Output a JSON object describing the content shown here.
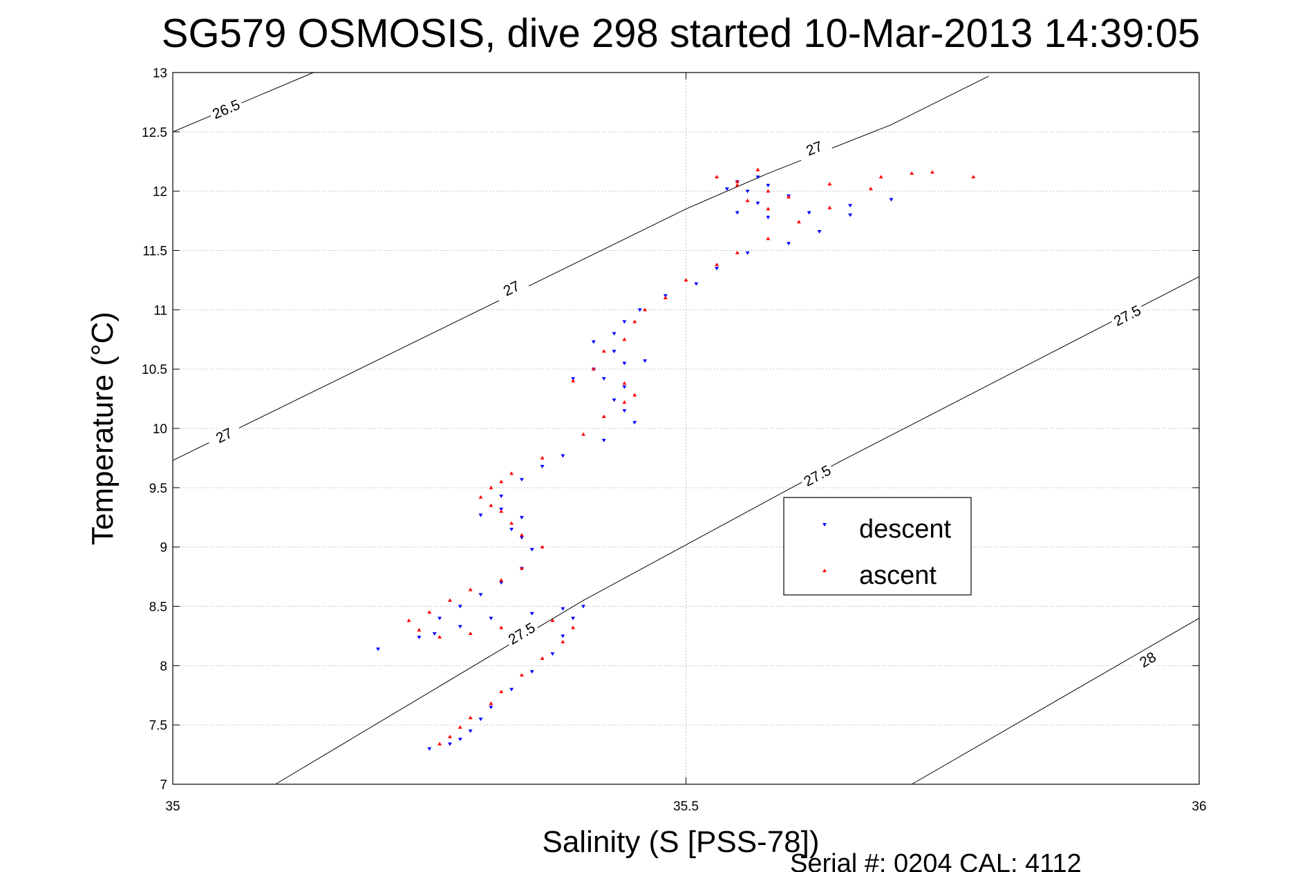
{
  "chart_data": {
    "type": "scatter",
    "title": "SG579 OSMOSIS, dive 298 started 10-Mar-2013 14:39:05",
    "xlabel": "Salinity (S [PSS-78])",
    "ylabel": "Temperature (°C)",
    "xlim": [
      35,
      36
    ],
    "ylim": [
      7,
      13
    ],
    "xticks": [
      "35",
      "35.5",
      "36"
    ],
    "yticks": [
      "7",
      "7.5",
      "8",
      "8.5",
      "9",
      "9.5",
      "10",
      "10.5",
      "11",
      "11.5",
      "12",
      "12.5",
      "13"
    ],
    "grid": true,
    "legend": {
      "position": "right",
      "entries": [
        "descent",
        "ascent"
      ]
    },
    "footer": "Serial #: 0204  CAL: 4112",
    "colors": {
      "descent": "#0000ff",
      "ascent": "#ff0000",
      "contour": "#000000",
      "grid": "#b0b0b0"
    },
    "contours": [
      {
        "label": "26.5",
        "points": [
          [
            35.0,
            12.5
          ],
          [
            35.137,
            13.0
          ]
        ],
        "label_at": [
          [
            35.052,
            12.69
          ]
        ]
      },
      {
        "label": "27",
        "points": [
          [
            35.0,
            9.73
          ],
          [
            35.5,
            11.85
          ],
          [
            35.58,
            12.15
          ],
          [
            35.7,
            12.56
          ],
          [
            35.795,
            12.97
          ]
        ],
        "label_at": [
          [
            35.05,
            9.94
          ],
          [
            35.33,
            11.18
          ],
          [
            35.625,
            12.36
          ]
        ]
      },
      {
        "label": "27.5",
        "points": [
          [
            35.1,
            7.0
          ],
          [
            35.4,
            8.55
          ],
          [
            35.65,
            9.72
          ],
          [
            36.0,
            11.28
          ]
        ],
        "label_at": [
          [
            35.34,
            8.27
          ],
          [
            35.628,
            9.6
          ],
          [
            35.93,
            10.95
          ]
        ]
      },
      {
        "label": "28",
        "points": [
          [
            35.72,
            7.0
          ],
          [
            36.0,
            8.4
          ]
        ],
        "label_at": [
          [
            35.95,
            8.05
          ]
        ]
      }
    ],
    "series": [
      {
        "name": "descent",
        "marker": "triangle-down",
        "points": [
          [
            35.25,
            7.3
          ],
          [
            35.27,
            7.34
          ],
          [
            35.28,
            7.38
          ],
          [
            35.29,
            7.45
          ],
          [
            35.3,
            7.55
          ],
          [
            35.31,
            7.65
          ],
          [
            35.33,
            7.8
          ],
          [
            35.35,
            7.95
          ],
          [
            35.37,
            8.1
          ],
          [
            35.38,
            8.25
          ],
          [
            35.39,
            8.4
          ],
          [
            35.4,
            8.5
          ],
          [
            35.38,
            8.48
          ],
          [
            35.35,
            8.44
          ],
          [
            35.31,
            8.4
          ],
          [
            35.28,
            8.33
          ],
          [
            35.24,
            8.24
          ],
          [
            35.2,
            8.14
          ],
          [
            35.255,
            8.27
          ],
          [
            35.26,
            8.4
          ],
          [
            35.28,
            8.5
          ],
          [
            35.3,
            8.6
          ],
          [
            35.32,
            8.7
          ],
          [
            35.34,
            8.82
          ],
          [
            35.35,
            8.98
          ],
          [
            35.34,
            9.08
          ],
          [
            35.33,
            9.15
          ],
          [
            35.34,
            9.25
          ],
          [
            35.32,
            9.32
          ],
          [
            35.3,
            9.27
          ],
          [
            35.32,
            9.43
          ],
          [
            35.34,
            9.57
          ],
          [
            35.36,
            9.68
          ],
          [
            35.38,
            9.77
          ],
          [
            35.42,
            9.9
          ],
          [
            35.45,
            10.05
          ],
          [
            35.44,
            10.15
          ],
          [
            35.43,
            10.24
          ],
          [
            35.44,
            10.35
          ],
          [
            35.42,
            10.42
          ],
          [
            35.39,
            10.42
          ],
          [
            35.41,
            10.5
          ],
          [
            35.44,
            10.55
          ],
          [
            35.46,
            10.57
          ],
          [
            35.43,
            10.65
          ],
          [
            35.41,
            10.73
          ],
          [
            35.43,
            10.8
          ],
          [
            35.44,
            10.9
          ],
          [
            35.455,
            11.0
          ],
          [
            35.48,
            11.12
          ],
          [
            35.51,
            11.22
          ],
          [
            35.53,
            11.35
          ],
          [
            35.56,
            11.48
          ],
          [
            35.6,
            11.56
          ],
          [
            35.63,
            11.66
          ],
          [
            35.66,
            11.8
          ],
          [
            35.7,
            11.93
          ],
          [
            35.66,
            11.88
          ],
          [
            35.62,
            11.82
          ],
          [
            35.58,
            11.78
          ],
          [
            35.55,
            11.82
          ],
          [
            35.57,
            11.9
          ],
          [
            35.6,
            11.96
          ],
          [
            35.56,
            12.0
          ],
          [
            35.54,
            12.02
          ],
          [
            35.58,
            12.05
          ],
          [
            35.55,
            12.08
          ],
          [
            35.57,
            12.12
          ]
        ]
      },
      {
        "name": "ascent",
        "marker": "triangle-up",
        "points": [
          [
            35.26,
            7.34
          ],
          [
            35.27,
            7.4
          ],
          [
            35.28,
            7.48
          ],
          [
            35.29,
            7.56
          ],
          [
            35.31,
            7.68
          ],
          [
            35.32,
            7.78
          ],
          [
            35.34,
            7.92
          ],
          [
            35.36,
            8.06
          ],
          [
            35.38,
            8.2
          ],
          [
            35.39,
            8.32
          ],
          [
            35.37,
            8.38
          ],
          [
            35.32,
            8.32
          ],
          [
            35.29,
            8.27
          ],
          [
            35.26,
            8.24
          ],
          [
            35.24,
            8.3
          ],
          [
            35.23,
            8.38
          ],
          [
            35.25,
            8.45
          ],
          [
            35.27,
            8.55
          ],
          [
            35.29,
            8.64
          ],
          [
            35.32,
            8.72
          ],
          [
            35.34,
            8.82
          ],
          [
            35.36,
            9.0
          ],
          [
            35.34,
            9.1
          ],
          [
            35.33,
            9.2
          ],
          [
            35.32,
            9.3
          ],
          [
            35.31,
            9.35
          ],
          [
            35.3,
            9.42
          ],
          [
            35.31,
            9.5
          ],
          [
            35.32,
            9.55
          ],
          [
            35.33,
            9.62
          ],
          [
            35.36,
            9.75
          ],
          [
            35.4,
            9.95
          ],
          [
            35.42,
            10.1
          ],
          [
            35.44,
            10.22
          ],
          [
            35.45,
            10.28
          ],
          [
            35.44,
            10.38
          ],
          [
            35.41,
            10.5
          ],
          [
            35.39,
            10.4
          ],
          [
            35.42,
            10.65
          ],
          [
            35.44,
            10.75
          ],
          [
            35.45,
            10.9
          ],
          [
            35.46,
            11.0
          ],
          [
            35.48,
            11.1
          ],
          [
            35.5,
            11.25
          ],
          [
            35.53,
            11.38
          ],
          [
            35.55,
            11.48
          ],
          [
            35.58,
            11.6
          ],
          [
            35.61,
            11.74
          ],
          [
            35.64,
            11.86
          ],
          [
            35.68,
            12.02
          ],
          [
            35.72,
            12.15
          ],
          [
            35.74,
            12.16
          ],
          [
            35.69,
            12.12
          ],
          [
            35.64,
            12.06
          ],
          [
            35.6,
            11.95
          ],
          [
            35.58,
            11.85
          ],
          [
            35.56,
            11.92
          ],
          [
            35.58,
            12.0
          ],
          [
            35.55,
            12.08
          ],
          [
            35.57,
            12.18
          ],
          [
            35.53,
            12.12
          ],
          [
            35.55,
            12.05
          ],
          [
            35.78,
            12.12
          ]
        ]
      }
    ]
  }
}
